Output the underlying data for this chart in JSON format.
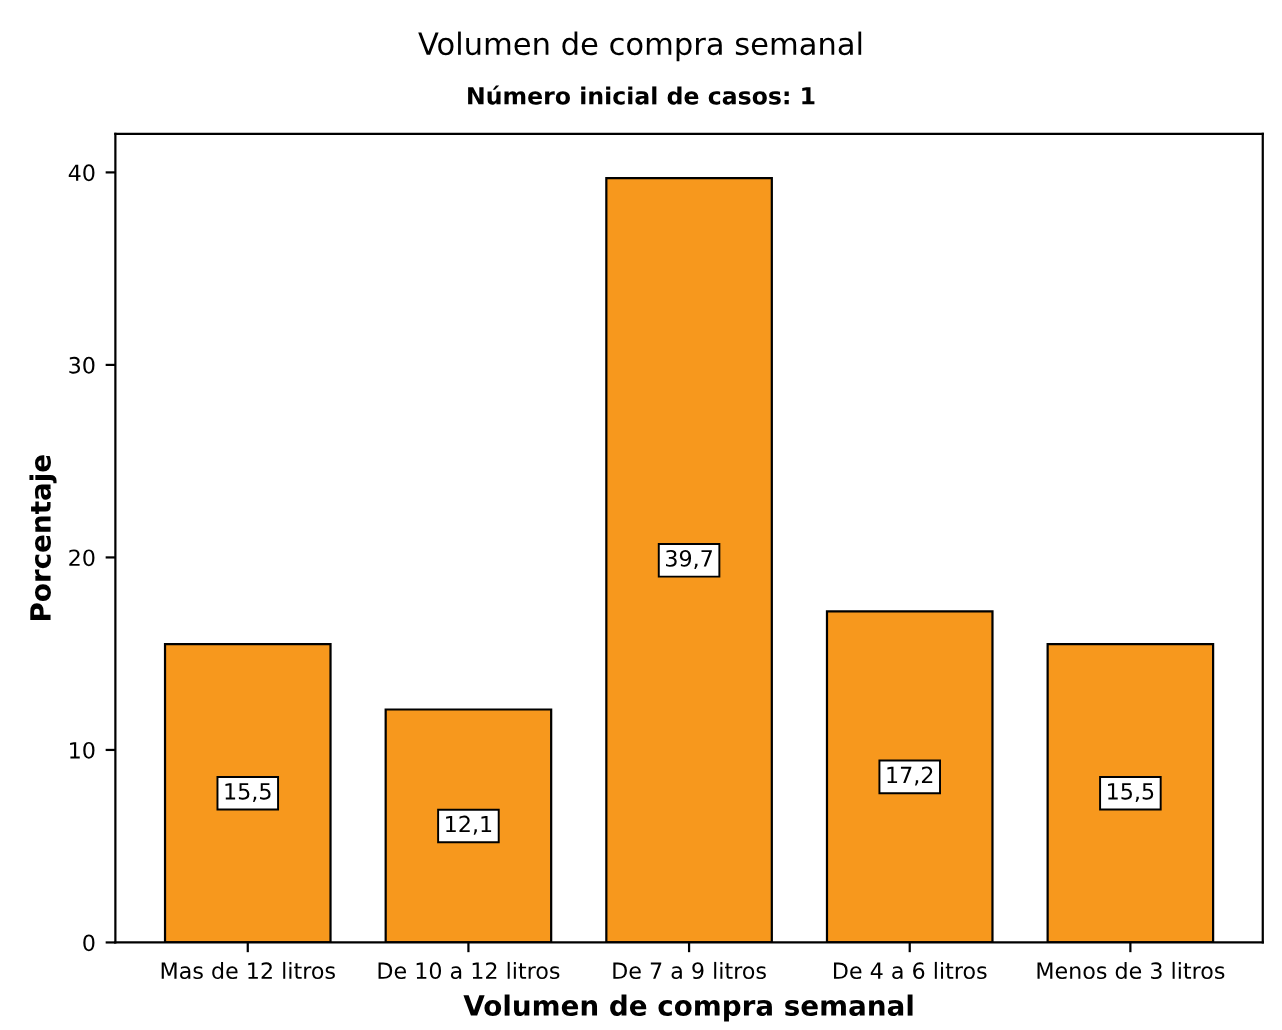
{
  "chart_data": {
    "type": "bar",
    "title": "Volumen de compra semanal",
    "subtitle": "Número inicial de casos: 1",
    "xlabel": "Volumen de compra semanal",
    "ylabel": "Porcentaje",
    "categories": [
      "Mas de 12 litros",
      "De 10 a 12 litros",
      "De 7 a 9 litros",
      "De 4 a 6 litros",
      "Menos de 3 litros"
    ],
    "values": [
      15.5,
      12.1,
      39.7,
      17.2,
      15.5
    ],
    "value_labels": [
      "15,5",
      "12,1",
      "39,7",
      "17,2",
      "15,5"
    ],
    "color": "#f7981d",
    "ylim": [
      0,
      42
    ],
    "yticks": [
      0,
      10,
      20,
      30,
      40
    ],
    "grid": false,
    "legend": false
  }
}
